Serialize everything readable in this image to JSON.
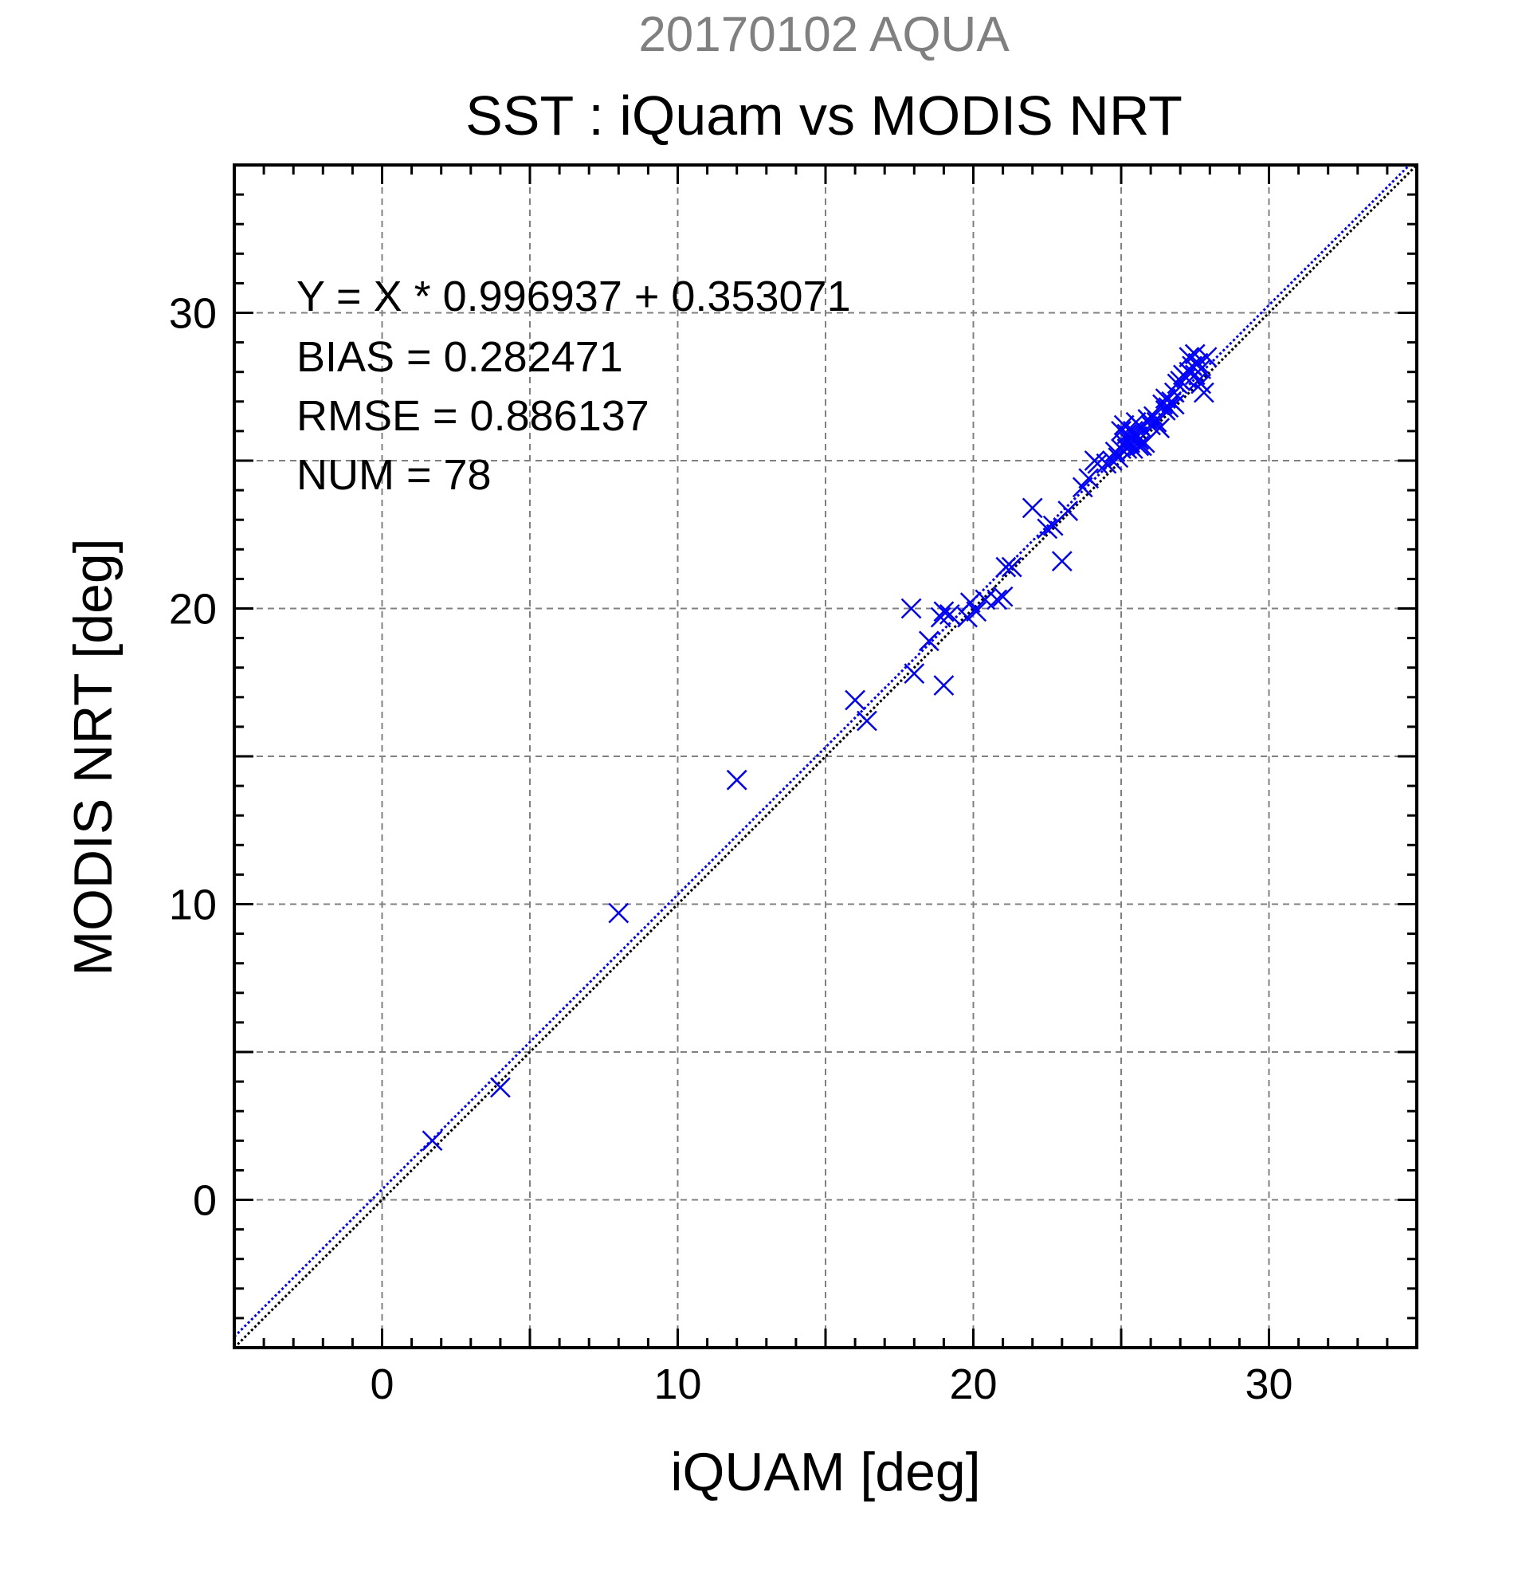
{
  "chart_data": {
    "type": "scatter",
    "subtitle": "20170102 AQUA",
    "title": "SST : iQuam vs MODIS NRT",
    "xlabel": "iQUAM [deg]",
    "ylabel": "MODIS NRT [deg]",
    "xlim": [
      -5,
      35
    ],
    "ylim": [
      -5,
      35
    ],
    "xticks": [
      0,
      10,
      20,
      30
    ],
    "yticks": [
      0,
      10,
      20,
      30
    ],
    "grid": true,
    "grid_step": 5,
    "minor_step": 1,
    "colors": {
      "points": "#0000ff",
      "fit_line": "#0000ff",
      "identity_line": "#000000",
      "subtitle": "#808080"
    },
    "stats": [
      "Y = X * 0.996937 + 0.353071",
      "BIAS = 0.282471",
      "RMSE = 0.886137",
      "NUM = 78"
    ],
    "fit": {
      "slope": 0.996937,
      "intercept": 0.353071,
      "style": "dotted"
    },
    "identity": {
      "slope": 1,
      "intercept": 0,
      "style": "dotted"
    },
    "points": [
      [
        1.7,
        2.0
      ],
      [
        4.0,
        3.8
      ],
      [
        8.0,
        9.7
      ],
      [
        12.0,
        14.2
      ],
      [
        16.0,
        16.9
      ],
      [
        16.4,
        16.2
      ],
      [
        17.9,
        20.0
      ],
      [
        18.0,
        17.8
      ],
      [
        18.5,
        18.9
      ],
      [
        18.9,
        19.7
      ],
      [
        19.0,
        19.9
      ],
      [
        19.0,
        17.4
      ],
      [
        19.2,
        19.8
      ],
      [
        19.8,
        19.7
      ],
      [
        19.9,
        20.2
      ],
      [
        20.1,
        19.9
      ],
      [
        20.4,
        20.3
      ],
      [
        20.8,
        20.3
      ],
      [
        21.0,
        20.4
      ],
      [
        21.1,
        21.4
      ],
      [
        21.3,
        21.4
      ],
      [
        22.0,
        23.4
      ],
      [
        22.5,
        22.7
      ],
      [
        22.7,
        22.8
      ],
      [
        23.0,
        21.6
      ],
      [
        23.2,
        23.3
      ],
      [
        23.7,
        24.1
      ],
      [
        23.9,
        24.4
      ],
      [
        24.1,
        25.0
      ],
      [
        24.2,
        24.9
      ],
      [
        24.5,
        24.9
      ],
      [
        24.7,
        25.0
      ],
      [
        24.8,
        25.3
      ],
      [
        24.9,
        25.1
      ],
      [
        25.0,
        26.0
      ],
      [
        25.0,
        25.4
      ],
      [
        25.1,
        25.6
      ],
      [
        25.1,
        26.2
      ],
      [
        25.2,
        25.4
      ],
      [
        25.2,
        25.9
      ],
      [
        25.3,
        25.6
      ],
      [
        25.3,
        25.8
      ],
      [
        25.4,
        26.0
      ],
      [
        25.4,
        25.4
      ],
      [
        25.5,
        25.8
      ],
      [
        25.5,
        26.3
      ],
      [
        25.6,
        25.5
      ],
      [
        25.6,
        25.7
      ],
      [
        25.7,
        25.5
      ],
      [
        25.7,
        26.1
      ],
      [
        25.8,
        25.6
      ],
      [
        25.9,
        26.4
      ],
      [
        26.0,
        26.2
      ],
      [
        26.1,
        26.5
      ],
      [
        26.2,
        26.3
      ],
      [
        26.3,
        26.1
      ],
      [
        26.4,
        26.9
      ],
      [
        26.5,
        26.7
      ],
      [
        26.5,
        27.1
      ],
      [
        26.6,
        26.8
      ],
      [
        26.7,
        27.0
      ],
      [
        26.8,
        26.9
      ],
      [
        26.8,
        27.3
      ],
      [
        26.9,
        27.6
      ],
      [
        27.0,
        27.7
      ],
      [
        27.1,
        27.9
      ],
      [
        27.2,
        27.8
      ],
      [
        27.3,
        28.0
      ],
      [
        27.3,
        28.5
      ],
      [
        27.4,
        28.2
      ],
      [
        27.5,
        28.6
      ],
      [
        27.5,
        27.9
      ],
      [
        27.6,
        27.7
      ],
      [
        27.6,
        28.3
      ],
      [
        27.7,
        27.6
      ],
      [
        27.7,
        28.1
      ],
      [
        27.8,
        27.3
      ],
      [
        27.9,
        28.5
      ]
    ]
  }
}
